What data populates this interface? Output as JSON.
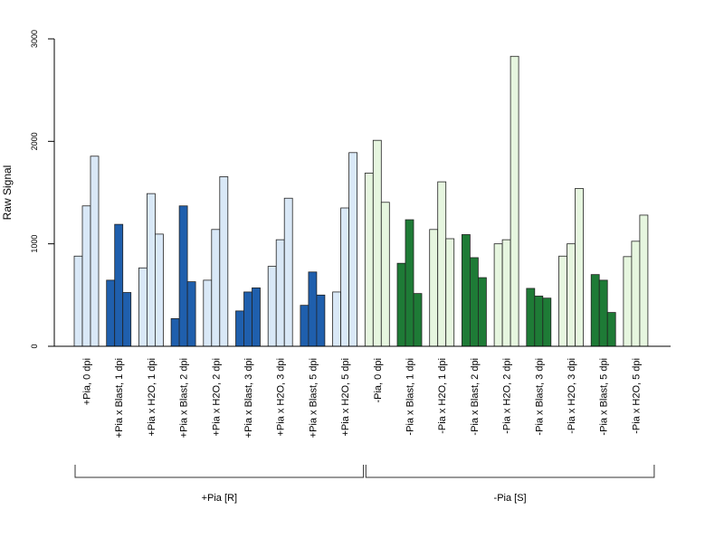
{
  "chart_data": {
    "type": "bar",
    "ylabel": "Raw Signal",
    "ylim": [
      0,
      3000
    ],
    "yticks": [
      "0",
      "1000",
      "2000",
      "3000"
    ],
    "categories": [
      "+Pia, 0 dpi",
      "+Pia x Blast, 1 dpi",
      "+Pia x H2O, 1 dpi",
      "+Pia x Blast, 2 dpi",
      "+Pia x H2O, 2 dpi",
      "+Pia x Blast, 3 dpi",
      "+Pia x H2O, 3 dpi",
      "+Pia x Blast, 5 dpi",
      "+Pia x H2O, 5 dpi",
      "-Pia, 0 dpi",
      "-Pia x Blast, 1 dpi",
      "-Pia x H2O, 1 dpi",
      "-Pia x Blast, 2 dpi",
      "-Pia x H2O, 2 dpi",
      "-Pia x Blast, 3 dpi",
      "-Pia x H2O, 3 dpi",
      "-Pia x Blast, 5 dpi",
      "-Pia x H2O, 5 dpi"
    ],
    "values": [
      [
        880,
        1370,
        1855
      ],
      [
        645,
        1190,
        525
      ],
      [
        765,
        1490,
        1095
      ],
      [
        270,
        1370,
        630
      ],
      [
        645,
        1140,
        1655
      ],
      [
        345,
        530,
        570
      ],
      [
        780,
        1040,
        1445
      ],
      [
        400,
        725,
        500
      ],
      [
        530,
        1350,
        1890
      ],
      [
        1690,
        2010,
        1405
      ],
      [
        810,
        1235,
        515
      ],
      [
        1140,
        1605,
        1050
      ],
      [
        1090,
        865,
        670
      ],
      [
        1000,
        1040,
        2830
      ],
      [
        565,
        490,
        470
      ],
      [
        880,
        1000,
        1540
      ],
      [
        700,
        645,
        330
      ],
      [
        875,
        1025,
        1280
      ]
    ],
    "colors": {
      "plus_blast": "#1f5fad",
      "plus_h2o": "#d9e8f7",
      "minus_blast": "#1e7b36",
      "minus_h2o": "#e6f6df"
    },
    "groups": [
      {
        "label": "+Pia [R]",
        "categories": [
          0,
          8
        ]
      },
      {
        "label": "-Pia [S]",
        "categories": [
          9,
          17
        ]
      }
    ]
  }
}
